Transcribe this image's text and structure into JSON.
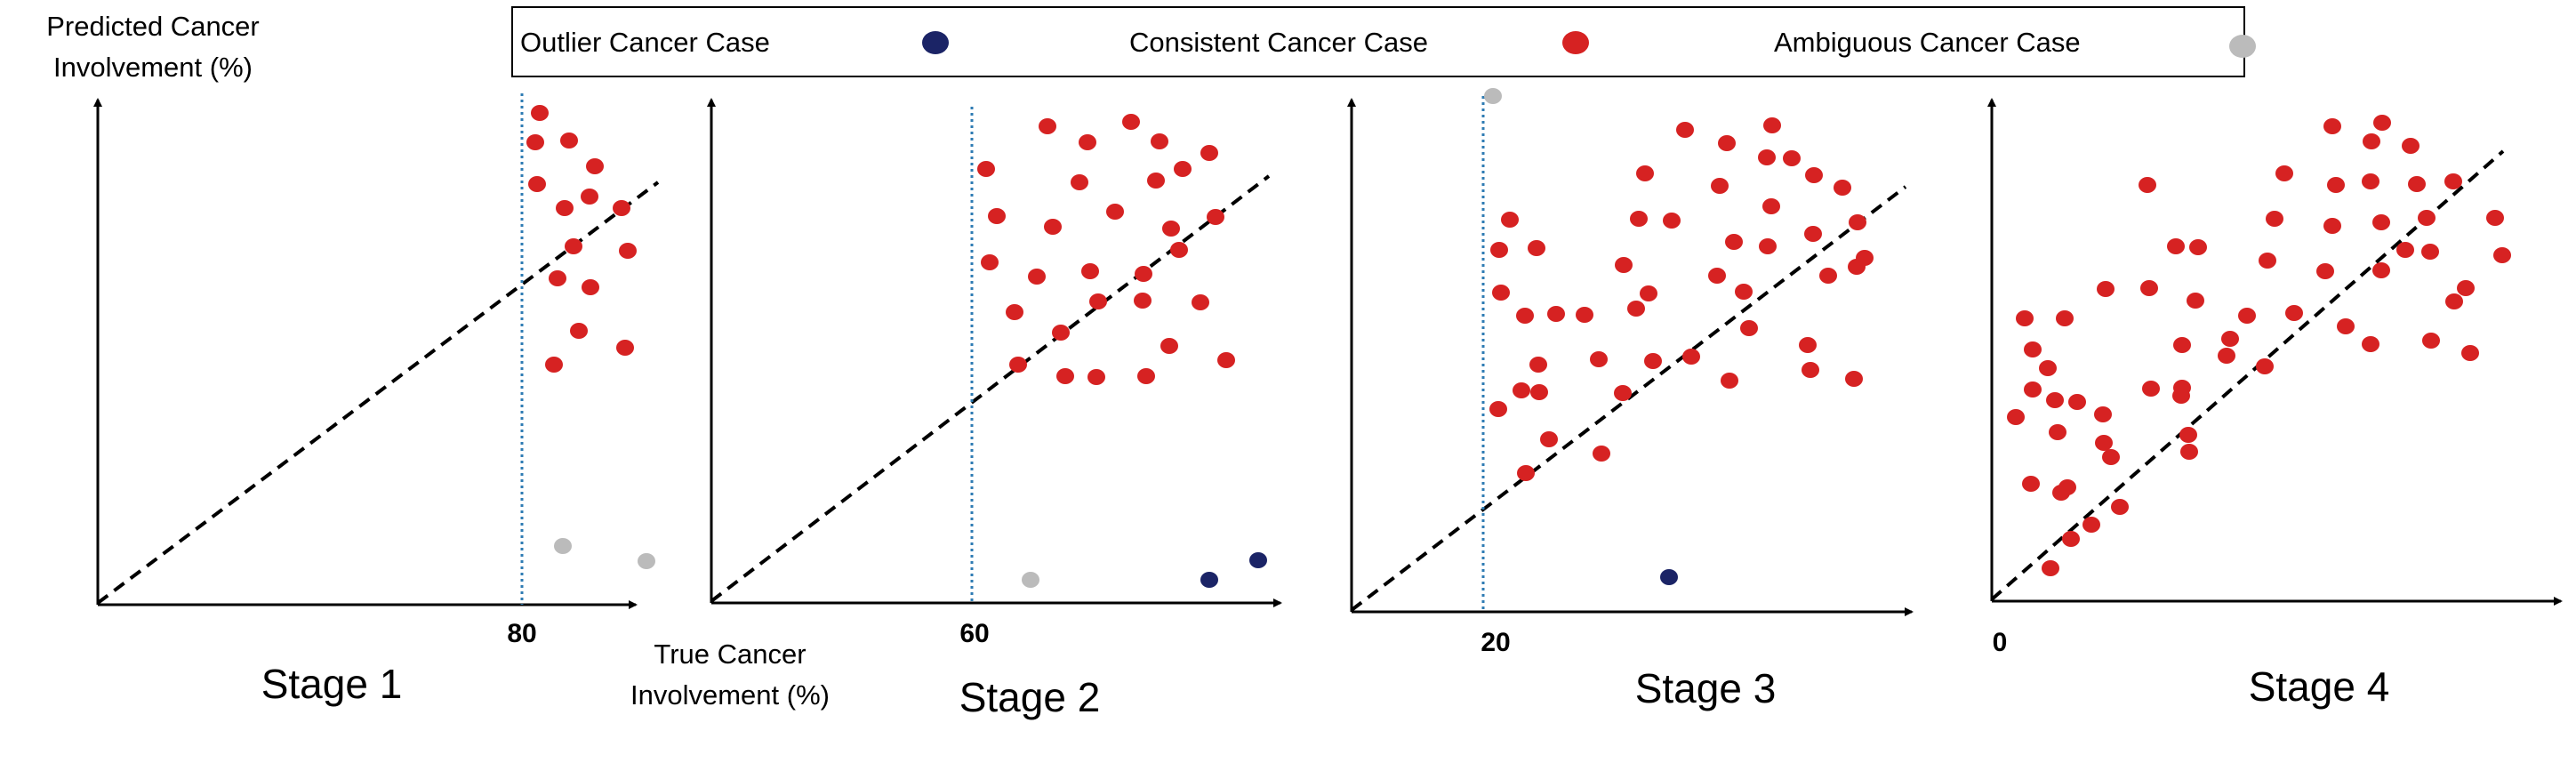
{
  "figure": {
    "ylabel_lines": [
      "Predicted Cancer",
      "Involvement (%)"
    ],
    "xlabel_lines": [
      "True Cancer",
      "Involvement (%)"
    ]
  },
  "legend": [
    {
      "label": "Outlier Cancer Case",
      "color": "#1b2466",
      "icon": "navy-dot"
    },
    {
      "label": "Consistent Cancer Case",
      "color": "#d62222",
      "icon": "red-dot"
    },
    {
      "label": "Ambiguous Cancer Case",
      "color": "#bbbbbb",
      "icon": "gray-dot"
    }
  ],
  "colors": {
    "outlier": "#1b2466",
    "consistent": "#d62222",
    "ambiguous": "#bbbbbb",
    "threshold_line": "#2e7bb3",
    "identity_line": "#000000"
  },
  "panels": [
    {
      "title": "Stage 1",
      "threshold_label": "80",
      "threshold": 80,
      "outliers": 0,
      "ambiguous": 2
    },
    {
      "title": "Stage 2",
      "threshold_label": "60",
      "threshold": 60,
      "outliers": 2,
      "ambiguous": 1
    },
    {
      "title": "Stage 3",
      "threshold_label": "20",
      "threshold": 20,
      "outliers": 1,
      "ambiguous": 1
    },
    {
      "title": "Stage 4",
      "threshold_label": "0",
      "threshold": 0,
      "outliers": 0,
      "ambiguous": 0
    }
  ]
}
